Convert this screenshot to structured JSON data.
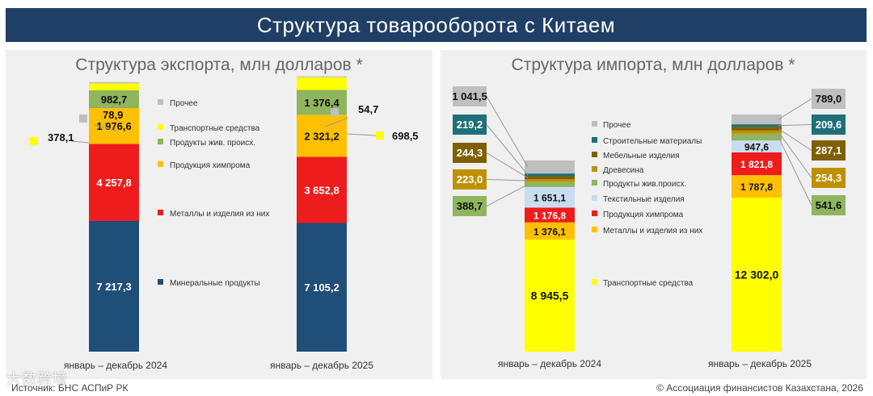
{
  "header": {
    "title": "Структура товарооборота с Китаем"
  },
  "footer": {
    "source": "Источник: БНС АСПиР РК",
    "copyright": "© Ассоциация финансистов Казахстана, 2026",
    "watermark": "大数跨境"
  },
  "colors": {
    "header_bg": "#1f3f66",
    "panel_bg": "#f0f0f0",
    "mineral": "#1f4e79",
    "metals": "#ee1c1c",
    "chem": "#ffc000",
    "animal": "#8fb55e",
    "transport": "#ffff00",
    "other": "#bfbfbf",
    "construction": "#1f6f78",
    "furniture": "#7f5f00",
    "wood": "#bf9000",
    "textile": "#c9ddf0"
  },
  "chart_data": [
    {
      "type": "bar",
      "stacked": true,
      "title": "Структура экспорта, млн долларов *",
      "categories": [
        "январь – декабрь 2024",
        "январь – декабрь 2025"
      ],
      "ylim": [
        0,
        14700
      ],
      "series": [
        {
          "key": "mineral",
          "name": "Минеральные продукты",
          "color": "#1f4e79",
          "values": [
            7217.3,
            7105.2
          ],
          "labels": [
            "7 217,3",
            "7 105,2"
          ]
        },
        {
          "key": "metals",
          "name": "Металлы и изделия из них",
          "color": "#ee1c1c",
          "values": [
            4257.8,
            3652.8
          ],
          "labels": [
            "4 257,8",
            "3 652,8"
          ]
        },
        {
          "key": "chem",
          "name": "Продукция химпрома",
          "color": "#ffc000",
          "values": [
            1976.6,
            2321.2
          ],
          "labels": [
            "1 976,6",
            "2 321,2"
          ]
        },
        {
          "key": "animal",
          "name": "Продукты жив. происх.",
          "color": "#8fb55e",
          "values": [
            982.7,
            1376.4
          ],
          "labels": [
            "982,7",
            "1 376,4"
          ]
        },
        {
          "key": "transport",
          "name": "Транспортные средства",
          "color": "#ffff00",
          "values": [
            378.1,
            698.5
          ],
          "labels": [
            "378,1",
            "698,5"
          ]
        },
        {
          "key": "other",
          "name": "Прочее",
          "color": "#bfbfbf",
          "values": [
            78.9,
            54.7
          ],
          "labels": [
            "78,9",
            "54,7"
          ]
        }
      ]
    },
    {
      "type": "bar",
      "stacked": true,
      "title": "Структура импорта, млн долларов *",
      "categories": [
        "январь – декабрь 2024",
        "январь – декабрь 2025"
      ],
      "ylim": [
        0,
        26000
      ],
      "series": [
        {
          "key": "transport",
          "name": "Транспортные средства",
          "color": "#ffff00",
          "values": [
            8945.5,
            12302.0
          ],
          "labels": [
            "8 945,5",
            "12 302,0"
          ]
        },
        {
          "key": "metals",
          "name": "Металлы и изделия из них",
          "color": "#ffc000",
          "values": [
            1376.1,
            1787.8
          ],
          "labels": [
            "1 376,1",
            "1 787,8"
          ]
        },
        {
          "key": "chem",
          "name": "Продукция химпрома",
          "color": "#ee1c1c",
          "values": [
            1176.8,
            1821.8
          ],
          "labels": [
            "1 176,8",
            "1 821,8"
          ]
        },
        {
          "key": "textile",
          "name": "Текстильные изделия",
          "color": "#c9ddf0",
          "values": [
            1651.1,
            947.6
          ],
          "labels": [
            "1 651,1",
            "947,6"
          ]
        },
        {
          "key": "animal",
          "name": "Продукты жив.происх.",
          "color": "#8fb55e",
          "values": [
            388.7,
            541.6
          ],
          "labels": [
            "388,7",
            "541,6"
          ]
        },
        {
          "key": "wood",
          "name": "Древесина",
          "color": "#bf9000",
          "values": [
            223.0,
            254.3
          ],
          "labels": [
            "223,0",
            "254,3"
          ]
        },
        {
          "key": "furniture",
          "name": "Мебельные изделия",
          "color": "#7f5f00",
          "values": [
            244.3,
            287.1
          ],
          "labels": [
            "244,3",
            "287,1"
          ]
        },
        {
          "key": "construction",
          "name": "Строительные материалы",
          "color": "#1f6f78",
          "values": [
            219.2,
            209.6
          ],
          "labels": [
            "219,2",
            "209,6"
          ]
        },
        {
          "key": "other",
          "name": "Прочее",
          "color": "#bfbfbf",
          "values": [
            1041.5,
            789.0
          ],
          "labels": [
            "1 041,5",
            "789,0"
          ]
        }
      ]
    }
  ]
}
